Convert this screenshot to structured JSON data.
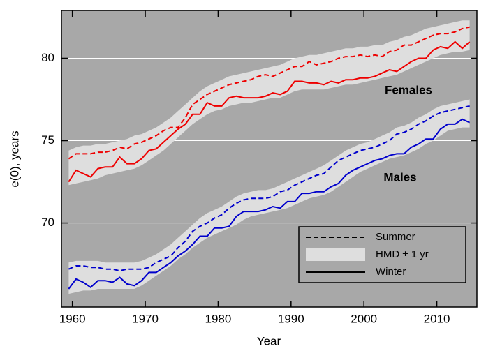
{
  "chart_data": {
    "type": "line",
    "xlabel": "Year",
    "ylabel": "e(0), years",
    "xlim": [
      1958.5,
      2015.5
    ],
    "xticks": [
      1960,
      1970,
      1980,
      1990,
      2000,
      2010
    ],
    "ylim": [
      64.9,
      82.9
    ],
    "yticks": [
      70,
      75,
      80
    ],
    "grid": true,
    "background": "#a8a8a8",
    "band_color": "#dedede",
    "legend": {
      "corner": "lower right",
      "entries": [
        "Summer",
        "HMD ± 1 yr",
        "Winter"
      ]
    },
    "x": [
      1959.5,
      1960.5,
      1961.5,
      1962.5,
      1963.5,
      1964.5,
      1965.5,
      1966.5,
      1967.5,
      1968.5,
      1969.5,
      1970.5,
      1971.5,
      1972.5,
      1973.5,
      1974.5,
      1975.5,
      1976.5,
      1977.5,
      1978.5,
      1979.5,
      1980.5,
      1981.5,
      1982.5,
      1983.5,
      1984.5,
      1985.5,
      1986.5,
      1987.5,
      1988.5,
      1989.5,
      1990.5,
      1991.5,
      1992.5,
      1993.5,
      1994.5,
      1995.5,
      1996.5,
      1997.5,
      1998.5,
      1999.5,
      2000.5,
      2001.5,
      2002.5,
      2003.5,
      2004.5,
      2005.5,
      2006.5,
      2007.5,
      2008.5,
      2009.5,
      2010.5,
      2011.5,
      2012.5,
      2013.5,
      2014.5
    ],
    "groups": [
      {
        "name": "Females",
        "color": "#ee0000",
        "summer": [
          73.9,
          74.2,
          74.2,
          74.2,
          74.3,
          74.3,
          74.4,
          74.6,
          74.5,
          74.8,
          74.9,
          75.1,
          75.3,
          75.6,
          75.8,
          75.8,
          76.4,
          77.2,
          77.5,
          77.8,
          78.0,
          78.2,
          78.4,
          78.5,
          78.6,
          78.7,
          78.9,
          79.0,
          78.9,
          79.1,
          79.3,
          79.5,
          79.5,
          79.8,
          79.6,
          79.7,
          79.8,
          80.0,
          80.1,
          80.1,
          80.2,
          80.1,
          80.2,
          80.1,
          80.4,
          80.5,
          80.8,
          80.8,
          81.0,
          81.2,
          81.4,
          81.5,
          81.5,
          81.6,
          81.8,
          81.9
        ],
        "winter": [
          72.5,
          73.2,
          73.0,
          72.8,
          73.3,
          73.4,
          73.4,
          74.0,
          73.6,
          73.6,
          73.9,
          74.4,
          74.5,
          74.9,
          75.3,
          75.7,
          76.0,
          76.6,
          76.6,
          77.3,
          77.1,
          77.1,
          77.6,
          77.7,
          77.6,
          77.6,
          77.6,
          77.7,
          77.9,
          77.8,
          78.0,
          78.6,
          78.6,
          78.5,
          78.5,
          78.4,
          78.6,
          78.5,
          78.7,
          78.7,
          78.8,
          78.8,
          78.9,
          79.1,
          79.3,
          79.2,
          79.5,
          79.8,
          80.0,
          80.0,
          80.5,
          80.7,
          80.6,
          81.0,
          80.6,
          81.0
        ],
        "band_lower": [
          72.3,
          72.4,
          72.5,
          72.6,
          72.7,
          72.9,
          73.0,
          73.1,
          73.2,
          73.3,
          73.5,
          73.8,
          74.1,
          74.4,
          74.8,
          75.2,
          75.6,
          76.0,
          76.3,
          76.6,
          76.8,
          76.9,
          77.1,
          77.2,
          77.3,
          77.3,
          77.4,
          77.5,
          77.6,
          77.6,
          77.8,
          78.0,
          78.1,
          78.1,
          78.1,
          78.1,
          78.2,
          78.3,
          78.4,
          78.4,
          78.5,
          78.6,
          78.7,
          78.8,
          78.9,
          79.0,
          79.2,
          79.4,
          79.6,
          79.8,
          80.0,
          80.2,
          80.3,
          80.4,
          80.4,
          80.5
        ],
        "band_upper": [
          74.4,
          74.6,
          74.7,
          74.7,
          74.8,
          74.8,
          74.9,
          75.0,
          75.1,
          75.3,
          75.4,
          75.6,
          75.8,
          76.1,
          76.4,
          76.8,
          77.2,
          77.6,
          78.0,
          78.3,
          78.5,
          78.7,
          78.9,
          79.0,
          79.1,
          79.2,
          79.3,
          79.4,
          79.5,
          79.6,
          79.8,
          80.0,
          80.1,
          80.2,
          80.2,
          80.3,
          80.4,
          80.5,
          80.6,
          80.6,
          80.7,
          80.7,
          80.8,
          80.8,
          81.0,
          81.1,
          81.3,
          81.4,
          81.6,
          81.8,
          81.9,
          82.0,
          82.1,
          82.2,
          82.3,
          82.3
        ]
      },
      {
        "name": "Males",
        "color": "#0000cc",
        "summer": [
          67.2,
          67.4,
          67.4,
          67.3,
          67.3,
          67.2,
          67.2,
          67.1,
          67.2,
          67.2,
          67.2,
          67.3,
          67.6,
          67.8,
          68.0,
          68.5,
          68.9,
          69.5,
          69.8,
          70.0,
          70.3,
          70.5,
          70.9,
          71.2,
          71.4,
          71.5,
          71.5,
          71.5,
          71.6,
          71.9,
          72.0,
          72.3,
          72.5,
          72.7,
          72.9,
          73.0,
          73.4,
          73.8,
          74.0,
          74.2,
          74.4,
          74.5,
          74.6,
          74.8,
          75.0,
          75.4,
          75.5,
          75.7,
          76.0,
          76.2,
          76.5,
          76.7,
          76.8,
          76.9,
          77.0,
          77.1
        ],
        "winter": [
          66.0,
          66.6,
          66.4,
          66.1,
          66.5,
          66.5,
          66.4,
          66.7,
          66.3,
          66.2,
          66.5,
          67.0,
          67.0,
          67.3,
          67.6,
          68.0,
          68.3,
          68.7,
          69.2,
          69.2,
          69.7,
          69.7,
          69.8,
          70.4,
          70.7,
          70.7,
          70.7,
          70.8,
          71.0,
          70.9,
          71.3,
          71.3,
          71.8,
          71.8,
          71.9,
          71.9,
          72.2,
          72.4,
          72.9,
          73.2,
          73.4,
          73.6,
          73.8,
          73.9,
          74.1,
          74.2,
          74.2,
          74.6,
          74.8,
          75.1,
          75.1,
          75.7,
          76.0,
          76.0,
          76.3,
          76.1
        ],
        "band_lower": [
          65.7,
          65.8,
          65.9,
          65.9,
          66.0,
          66.0,
          66.0,
          66.0,
          66.0,
          66.0,
          66.2,
          66.5,
          66.8,
          67.1,
          67.4,
          67.8,
          68.1,
          68.5,
          68.8,
          69.1,
          69.3,
          69.5,
          69.7,
          69.9,
          70.2,
          70.4,
          70.5,
          70.6,
          70.7,
          70.8,
          70.9,
          71.1,
          71.3,
          71.5,
          71.6,
          71.7,
          71.9,
          72.2,
          72.5,
          72.8,
          73.1,
          73.3,
          73.5,
          73.7,
          73.9,
          74.0,
          74.1,
          74.3,
          74.5,
          74.8,
          75.0,
          75.3,
          75.6,
          75.7,
          75.8,
          75.8
        ],
        "band_upper": [
          67.6,
          67.7,
          67.7,
          67.7,
          67.7,
          67.6,
          67.6,
          67.6,
          67.6,
          67.6,
          67.7,
          67.9,
          68.1,
          68.4,
          68.7,
          69.1,
          69.5,
          69.9,
          70.3,
          70.6,
          70.8,
          71.0,
          71.3,
          71.6,
          71.8,
          71.9,
          72.0,
          72.0,
          72.1,
          72.3,
          72.5,
          72.7,
          72.9,
          73.1,
          73.3,
          73.5,
          73.8,
          74.1,
          74.4,
          74.6,
          74.8,
          74.9,
          75.1,
          75.3,
          75.5,
          75.8,
          75.9,
          76.1,
          76.4,
          76.6,
          76.9,
          77.1,
          77.2,
          77.3,
          77.4,
          77.5
        ]
      }
    ]
  }
}
